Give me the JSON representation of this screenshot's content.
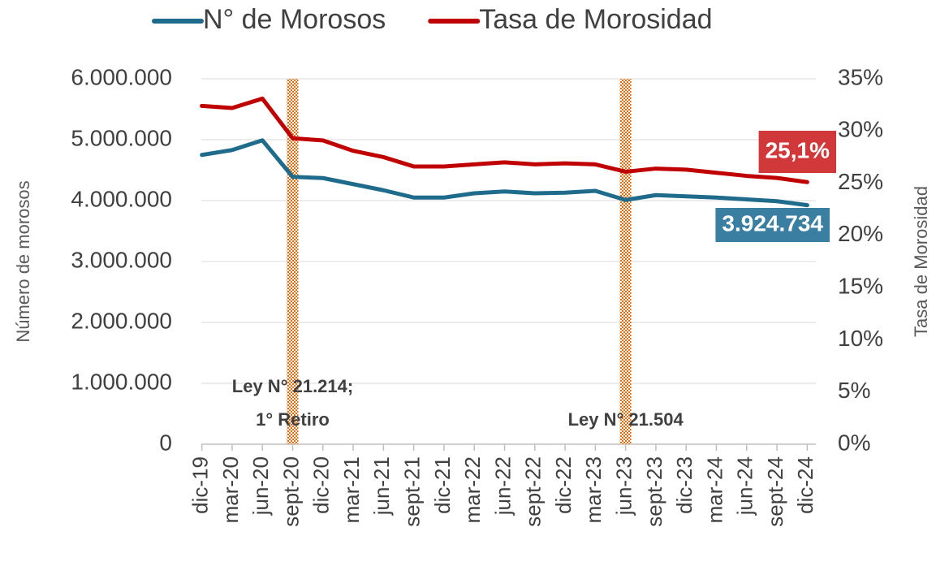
{
  "chart_data": {
    "type": "line",
    "y_label": "Número de morosos",
    "y2_label": "Tasa de Morosidad",
    "categories": [
      "dic-19",
      "mar-20",
      "jun-20",
      "sept-20",
      "dic-20",
      "mar-21",
      "jun-21",
      "sept-21",
      "dic-21",
      "mar-22",
      "jun-22",
      "sept-22",
      "dic-22",
      "mar-23",
      "jun-23",
      "sept-23",
      "dic-23",
      "mar-24",
      "jun-24",
      "sept-24",
      "dic-24"
    ],
    "series": [
      {
        "name": "N° de Morosos",
        "color": "#1f6b8c",
        "label_color": "#3a7ea1",
        "axis": "y",
        "values": [
          4750000,
          4830000,
          4990000,
          4390000,
          4370000,
          4270000,
          4170000,
          4050000,
          4050000,
          4120000,
          4150000,
          4120000,
          4130000,
          4160000,
          4010000,
          4090000,
          4070000,
          4050000,
          4020000,
          3990000,
          3924734
        ],
        "value_labels": [
          null,
          null,
          null,
          null,
          null,
          null,
          null,
          null,
          null,
          null,
          null,
          null,
          null,
          null,
          null,
          null,
          null,
          null,
          null,
          null,
          "3.924.734"
        ]
      },
      {
        "name": "Tasa de Morosidad",
        "color": "#c00000",
        "label_color": "#d0383a",
        "axis": "y2",
        "values": [
          32.4,
          32.2,
          33.1,
          29.3,
          29.1,
          28.1,
          27.5,
          26.6,
          26.6,
          26.8,
          27.0,
          26.8,
          26.9,
          26.8,
          26.1,
          26.4,
          26.3,
          26.0,
          25.7,
          25.5,
          25.1
        ],
        "value_labels": [
          null,
          null,
          null,
          null,
          null,
          null,
          null,
          null,
          null,
          null,
          null,
          null,
          null,
          null,
          null,
          null,
          null,
          null,
          null,
          null,
          "25,1%"
        ]
      }
    ],
    "ylim": [
      0,
      6000000
    ],
    "yticks": [
      0,
      {
        "value": 1000000,
        "label": "1.000.000"
      },
      {
        "value": 2000000,
        "label": "2.000.000"
      },
      {
        "value": 3000000,
        "label": "3.000.000"
      },
      {
        "value": 4000000,
        "label": "4.000.000"
      },
      {
        "value": 5000000,
        "label": "5.000.000"
      },
      {
        "value": 6000000,
        "label": "6.000.000"
      }
    ],
    "y2lim": [
      0,
      35
    ],
    "y2ticks": [
      {
        "value": 0,
        "label": "0%"
      },
      {
        "value": 5,
        "label": "5%"
      },
      {
        "value": 10,
        "label": "10%"
      },
      {
        "value": 15,
        "label": "15%"
      },
      {
        "value": 20,
        "label": "20%"
      },
      {
        "value": 25,
        "label": "25%"
      },
      {
        "value": 30,
        "label": "30%"
      },
      {
        "value": 35,
        "label": "35%"
      }
    ],
    "grid": true,
    "legend": "top",
    "annotations": [
      {
        "x": "sept-20",
        "lines": [
          "Ley N° 21.214;",
          "1° Retiro"
        ]
      },
      {
        "x": "jun-23",
        "lines": [
          "Ley N° 21.504"
        ]
      }
    ]
  }
}
